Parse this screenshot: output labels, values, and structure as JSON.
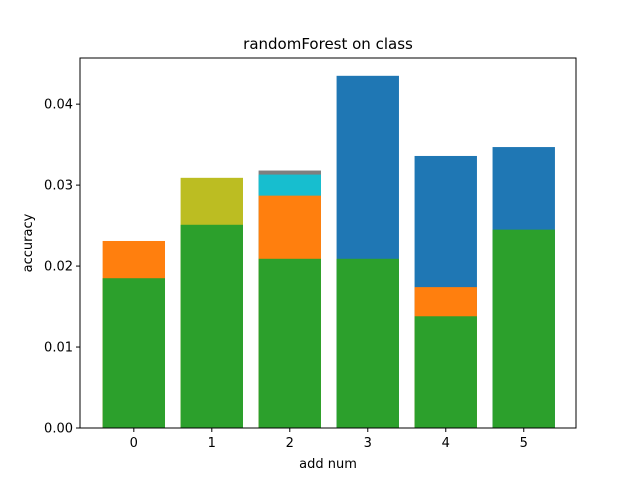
{
  "chart_data": {
    "type": "bar",
    "title": "randomForest on class",
    "xlabel": "add num",
    "ylabel": "accuracy",
    "x": [
      0,
      1,
      2,
      3,
      4,
      5
    ],
    "xlim": [
      -0.69,
      5.67
    ],
    "xticks": [
      0,
      1,
      2,
      3,
      4,
      5
    ],
    "ylim": [
      0,
      0.0457
    ],
    "yticks": [
      {
        "value": 0,
        "label": "0.00"
      },
      {
        "value": 0.01,
        "label": "0.01"
      },
      {
        "value": 0.02,
        "label": "0.02"
      },
      {
        "value": 0.03,
        "label": "0.03"
      },
      {
        "value": 0.04,
        "label": "0.04"
      }
    ],
    "series": [
      {
        "color": "#1f77b4",
        "values": [
          null,
          null,
          null,
          0.0435,
          0.0336,
          0.0347
        ]
      },
      {
        "color": "#7f7f7f",
        "values": [
          null,
          null,
          0.0318,
          null,
          null,
          null
        ]
      },
      {
        "color": "#17becf",
        "values": [
          null,
          null,
          0.0313,
          null,
          null,
          null
        ]
      },
      {
        "color": "#bcbd22",
        "values": [
          null,
          0.0309,
          null,
          null,
          null,
          null
        ]
      },
      {
        "color": "#ff7f0e",
        "values": [
          0.0231,
          null,
          0.0287,
          null,
          0.0174,
          null
        ]
      },
      {
        "color": "#2ca02c",
        "values": [
          0.0185,
          0.0251,
          0.0209,
          0.0209,
          0.0138,
          0.0245
        ]
      }
    ]
  }
}
